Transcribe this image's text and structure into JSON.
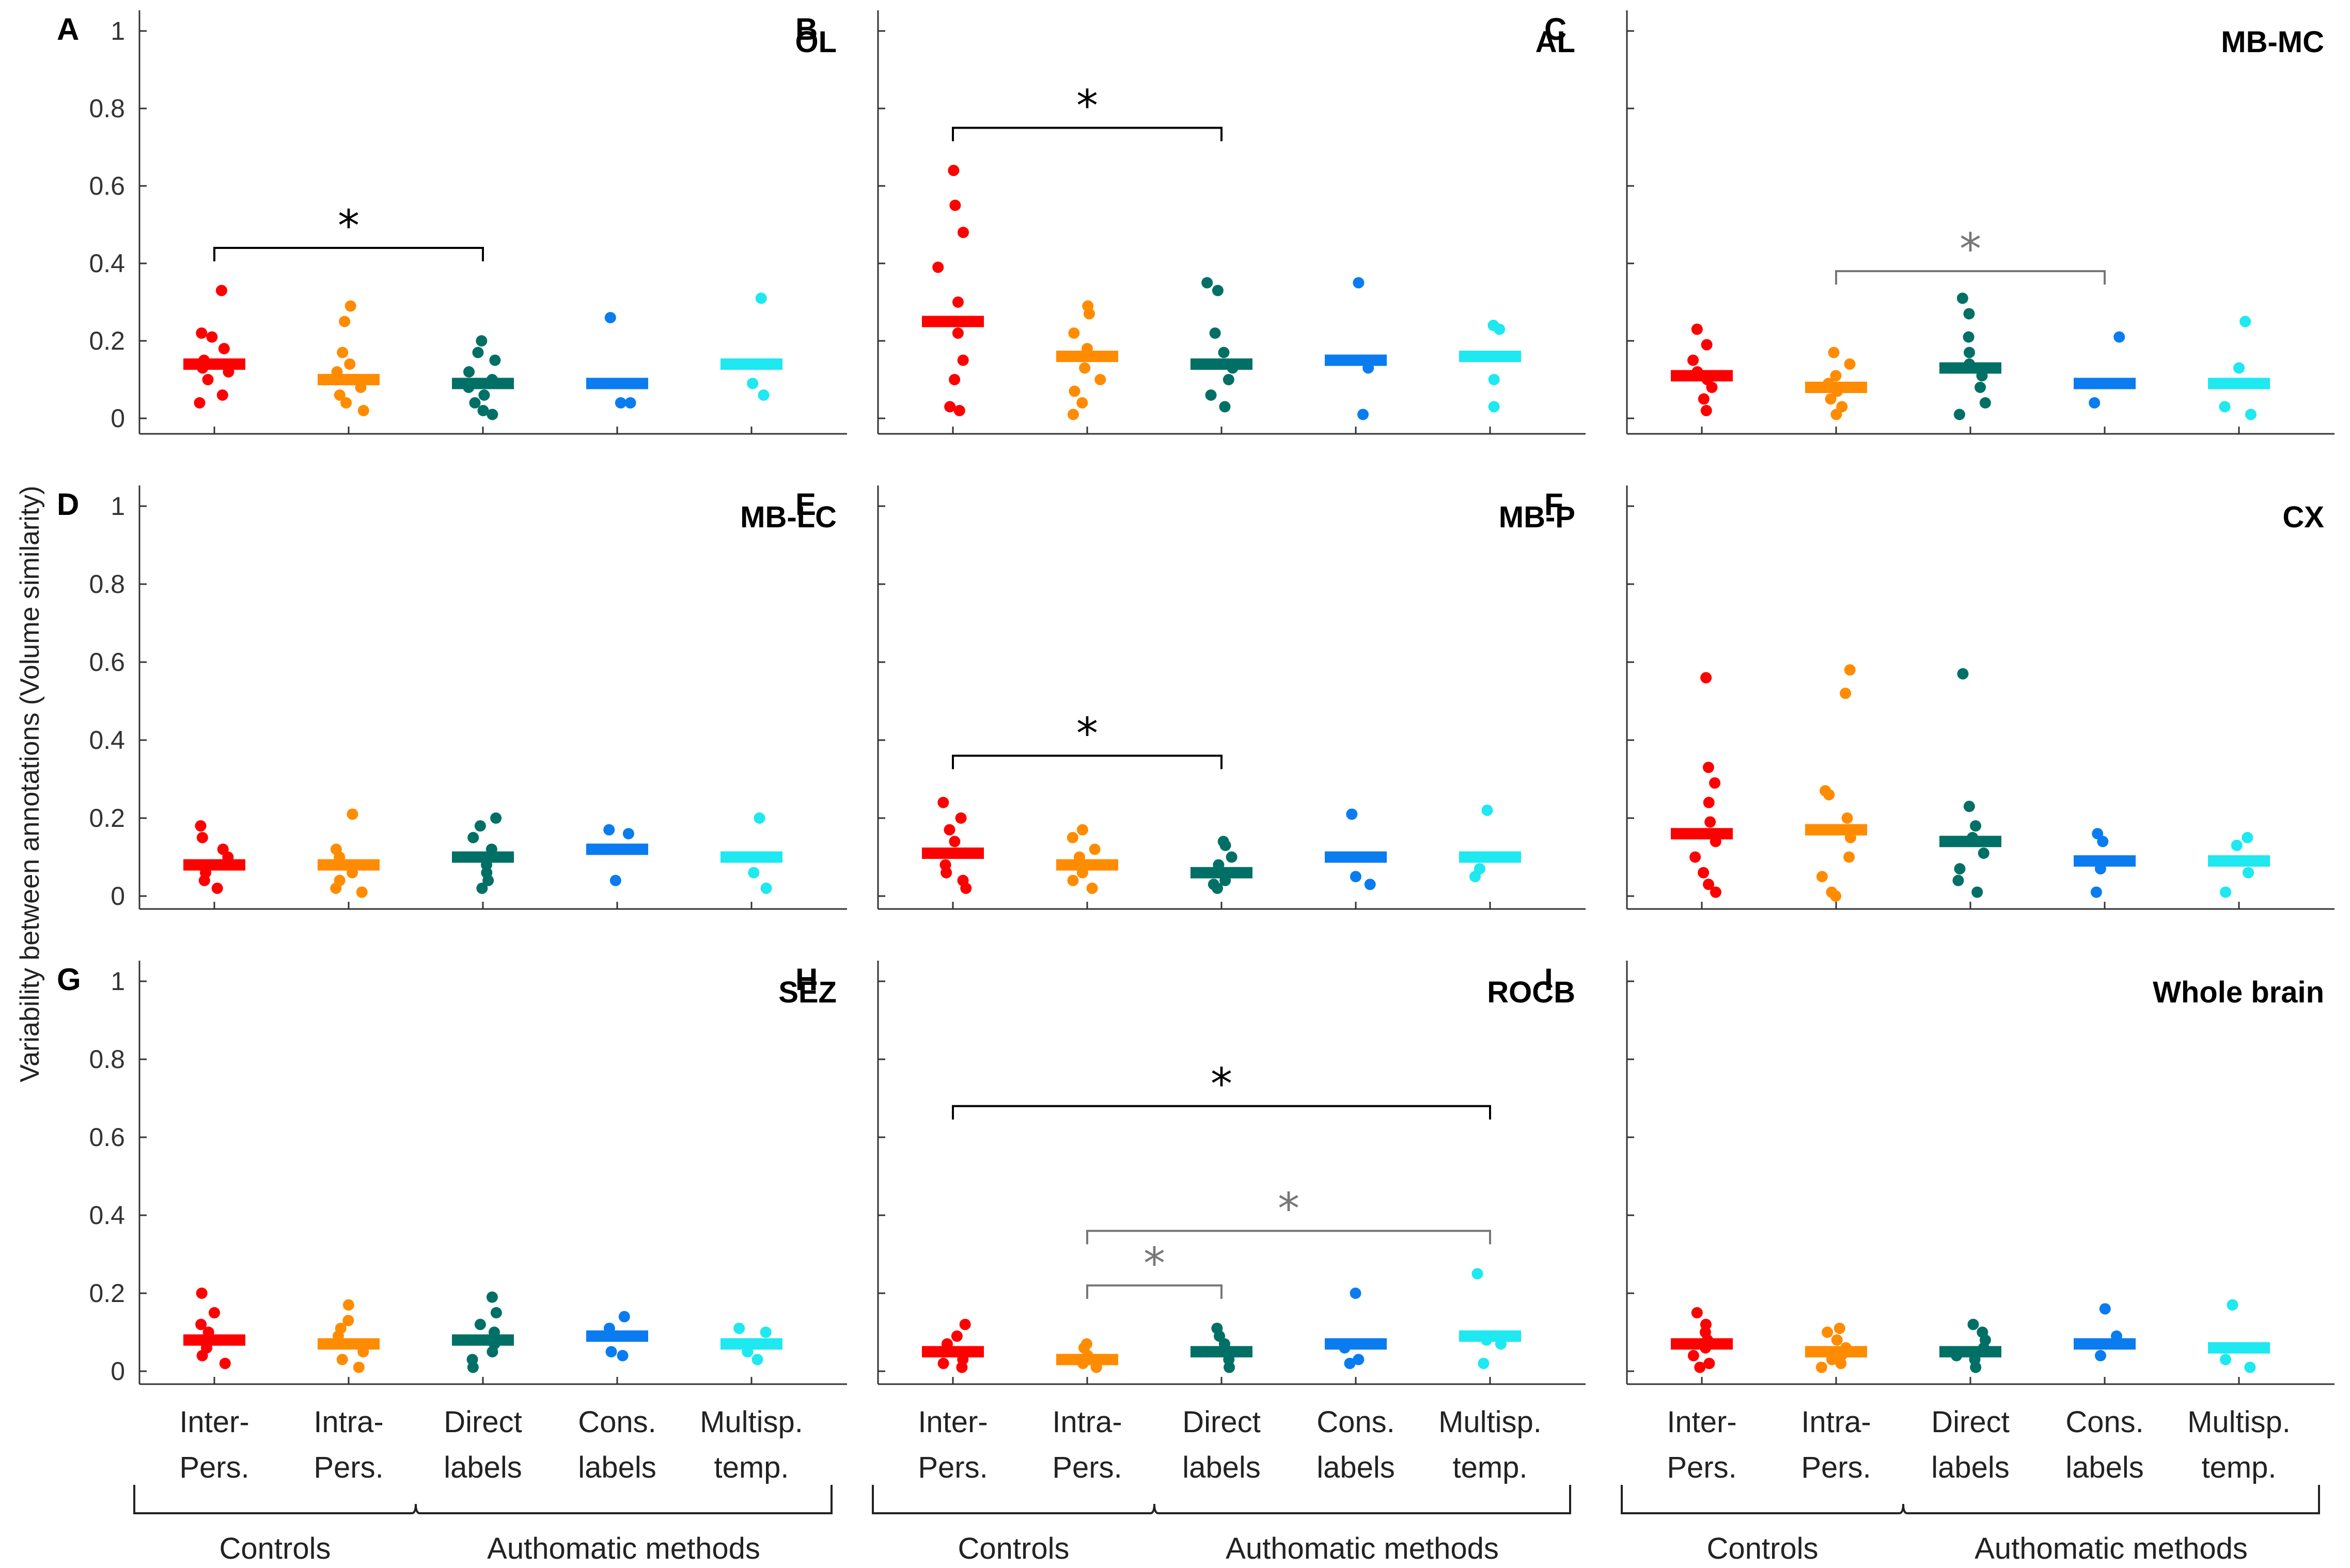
{
  "chart_data": {
    "type": "scatter",
    "ylabel": "Variability between annotations (Volume similarity)",
    "ylim": [
      0,
      1
    ],
    "yticks": [
      "0",
      "0.2",
      "0.4",
      "0.6",
      "0.8",
      "1"
    ],
    "categories": [
      {
        "line1": "Inter-",
        "line2": "Pers."
      },
      {
        "line1": "Intra-",
        "line2": "Pers."
      },
      {
        "line1": "Direct",
        "line2": "labels"
      },
      {
        "line1": "Cons.",
        "line2": "labels"
      },
      {
        "line1": "Multisp.",
        "line2": "temp."
      }
    ],
    "groups": [
      "Controls",
      "Authomatic methods"
    ],
    "colors": [
      "#ff0000",
      "#ff8c00",
      "#007066",
      "#0a7cf0",
      "#1ee8f0"
    ],
    "panels": [
      {
        "letter": "A",
        "title": "OL",
        "medians": [
          0.14,
          0.1,
          0.09,
          0.09,
          0.14
        ],
        "points": [
          [
            0.33,
            0.22,
            0.21,
            0.18,
            0.15,
            0.14,
            0.13,
            0.12,
            0.1,
            0.06,
            0.04
          ],
          [
            0.29,
            0.25,
            0.17,
            0.14,
            0.12,
            0.1,
            0.08,
            0.06,
            0.04,
            0.02
          ],
          [
            0.2,
            0.17,
            0.15,
            0.12,
            0.1,
            0.08,
            0.06,
            0.04,
            0.02,
            0.01
          ],
          [
            0.26,
            0.04,
            0.04
          ],
          [
            0.31,
            0.09,
            0.06
          ]
        ],
        "sig": [
          {
            "from": 0,
            "to": 2,
            "level": 0.44,
            "color": "black"
          }
        ]
      },
      {
        "letter": "B",
        "title": "AL",
        "medians": [
          0.25,
          0.16,
          0.14,
          0.15,
          0.16
        ],
        "points": [
          [
            0.64,
            0.55,
            0.48,
            0.39,
            0.3,
            0.22,
            0.15,
            0.1,
            0.03,
            0.02
          ],
          [
            0.29,
            0.27,
            0.22,
            0.18,
            0.16,
            0.13,
            0.1,
            0.07,
            0.04,
            0.01
          ],
          [
            0.35,
            0.33,
            0.22,
            0.17,
            0.13,
            0.1,
            0.06,
            0.03
          ],
          [
            0.35,
            0.13,
            0.01
          ],
          [
            0.24,
            0.23,
            0.1,
            0.03
          ]
        ],
        "sig": [
          {
            "from": 0,
            "to": 2,
            "level": 0.75,
            "color": "black"
          }
        ]
      },
      {
        "letter": "C",
        "title": "MB-MC",
        "medians": [
          0.11,
          0.08,
          0.13,
          0.09,
          0.09
        ],
        "points": [
          [
            0.23,
            0.19,
            0.15,
            0.12,
            0.1,
            0.08,
            0.05,
            0.02
          ],
          [
            0.17,
            0.14,
            0.11,
            0.09,
            0.07,
            0.05,
            0.03,
            0.01
          ],
          [
            0.31,
            0.27,
            0.21,
            0.17,
            0.14,
            0.11,
            0.08,
            0.04,
            0.01
          ],
          [
            0.21,
            0.09,
            0.04
          ],
          [
            0.25,
            0.13,
            0.03,
            0.01
          ]
        ],
        "sig": [
          {
            "from": 1,
            "to": 3,
            "level": 0.38,
            "color": "gray"
          }
        ]
      },
      {
        "letter": "D",
        "title": "MB-LC",
        "medians": [
          0.08,
          0.08,
          0.1,
          0.12,
          0.1
        ],
        "points": [
          [
            0.18,
            0.15,
            0.12,
            0.1,
            0.08,
            0.06,
            0.04,
            0.02
          ],
          [
            0.21,
            0.12,
            0.1,
            0.08,
            0.06,
            0.04,
            0.02,
            0.01
          ],
          [
            0.2,
            0.18,
            0.15,
            0.12,
            0.1,
            0.08,
            0.06,
            0.04,
            0.02
          ],
          [
            0.17,
            0.16,
            0.12,
            0.04
          ],
          [
            0.2,
            0.06,
            0.02
          ]
        ],
        "sig": []
      },
      {
        "letter": "E",
        "title": "MB-P",
        "medians": [
          0.11,
          0.08,
          0.06,
          0.1,
          0.1
        ],
        "points": [
          [
            0.24,
            0.2,
            0.17,
            0.14,
            0.11,
            0.08,
            0.06,
            0.04,
            0.02
          ],
          [
            0.17,
            0.15,
            0.12,
            0.1,
            0.08,
            0.06,
            0.04,
            0.02
          ],
          [
            0.14,
            0.13,
            0.1,
            0.08,
            0.06,
            0.04,
            0.03,
            0.02
          ],
          [
            0.21,
            0.1,
            0.05,
            0.03
          ],
          [
            0.22,
            0.1,
            0.07,
            0.05
          ]
        ],
        "sig": [
          {
            "from": 0,
            "to": 2,
            "level": 0.36,
            "color": "black"
          }
        ]
      },
      {
        "letter": "F",
        "title": "CX",
        "medians": [
          0.16,
          0.17,
          0.14,
          0.09,
          0.09
        ],
        "points": [
          [
            0.56,
            0.33,
            0.29,
            0.24,
            0.19,
            0.14,
            0.1,
            0.06,
            0.03,
            0.01
          ],
          [
            0.58,
            0.52,
            0.27,
            0.26,
            0.2,
            0.15,
            0.1,
            0.05,
            0.01,
            0.0
          ],
          [
            0.57,
            0.23,
            0.18,
            0.15,
            0.11,
            0.07,
            0.04,
            0.01
          ],
          [
            0.16,
            0.14,
            0.07,
            0.01
          ],
          [
            0.15,
            0.13,
            0.09,
            0.06,
            0.01
          ]
        ],
        "sig": []
      },
      {
        "letter": "G",
        "title": "SEZ",
        "medians": [
          0.08,
          0.07,
          0.08,
          0.09,
          0.07
        ],
        "points": [
          [
            0.2,
            0.15,
            0.12,
            0.1,
            0.08,
            0.06,
            0.04,
            0.02
          ],
          [
            0.17,
            0.13,
            0.11,
            0.09,
            0.07,
            0.05,
            0.03,
            0.01
          ],
          [
            0.19,
            0.15,
            0.12,
            0.1,
            0.07,
            0.05,
            0.03,
            0.01
          ],
          [
            0.14,
            0.11,
            0.05,
            0.04
          ],
          [
            0.11,
            0.1,
            0.05,
            0.03
          ]
        ],
        "sig": []
      },
      {
        "letter": "H",
        "title": "ROCB",
        "medians": [
          0.05,
          0.03,
          0.05,
          0.07,
          0.09
        ],
        "points": [
          [
            0.12,
            0.09,
            0.07,
            0.05,
            0.03,
            0.02,
            0.01
          ],
          [
            0.07,
            0.06,
            0.04,
            0.03,
            0.02,
            0.01
          ],
          [
            0.11,
            0.09,
            0.07,
            0.05,
            0.03,
            0.01
          ],
          [
            0.2,
            0.06,
            0.03,
            0.02
          ],
          [
            0.25,
            0.08,
            0.07,
            0.02
          ]
        ],
        "sig": [
          {
            "from": 0,
            "to": 4,
            "level": 0.68,
            "color": "black"
          },
          {
            "from": 1,
            "to": 4,
            "level": 0.36,
            "color": "gray"
          },
          {
            "from": 1,
            "to": 2,
            "level": 0.22,
            "color": "gray"
          }
        ]
      },
      {
        "letter": "I",
        "title": "Whole brain",
        "medians": [
          0.07,
          0.05,
          0.05,
          0.07,
          0.06
        ],
        "points": [
          [
            0.15,
            0.12,
            0.1,
            0.08,
            0.06,
            0.04,
            0.02,
            0.01
          ],
          [
            0.11,
            0.1,
            0.08,
            0.06,
            0.04,
            0.03,
            0.02,
            0.01
          ],
          [
            0.12,
            0.1,
            0.08,
            0.06,
            0.04,
            0.03,
            0.01
          ],
          [
            0.16,
            0.09,
            0.04
          ],
          [
            0.17,
            0.06,
            0.03,
            0.01
          ]
        ],
        "sig": []
      }
    ],
    "sig_symbol": "*"
  }
}
